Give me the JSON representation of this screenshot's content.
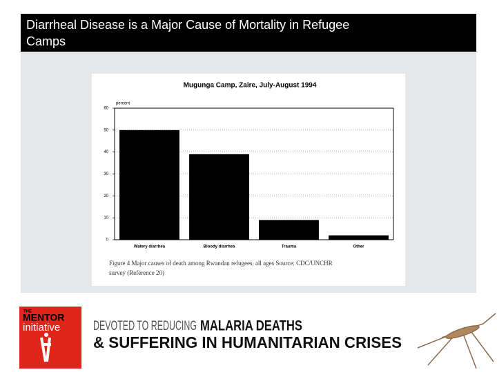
{
  "slide": {
    "title": "Diarrheal Disease is a Major Cause of Mortality in Refugee Camps",
    "footer": {
      "logo_top": "THE",
      "logo_name": "MENTOR",
      "logo_sub": "initiative",
      "tagline_gray": "DEVOTED TO REDUCING",
      "tagline_bold": "MALARIA DEATHS",
      "tagline_line2": "& SUFFERING IN HUMANITARIAN CRISES"
    }
  },
  "chart_data": {
    "type": "bar",
    "title": "Mugunga Camp, Zaire, July-August 1994",
    "y_label": "percent",
    "categories": [
      "Watery diarrhea",
      "Bloody diarrhea",
      "Trauma",
      "Other"
    ],
    "values": [
      50,
      39,
      9,
      2
    ],
    "color": "#000000",
    "ylim": [
      0,
      60
    ],
    "yticks": [
      0,
      10,
      20,
      30,
      40,
      50,
      60
    ],
    "grid": true,
    "caption_line1": "Figure 4   Major causes of death among Rwandan refugees, all ages   Source:  CDC/UNCHR",
    "caption_line2": "survey (Reference 20)"
  }
}
